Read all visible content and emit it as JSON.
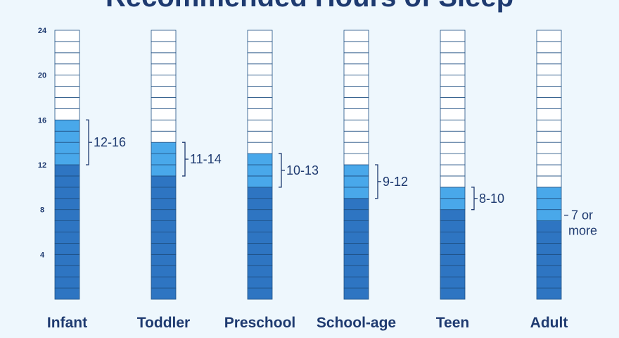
{
  "title": "Recommended Hours of Sleep",
  "colors": {
    "title": "#1e3a70",
    "base": "#2e75c2",
    "range": "#49a8ea",
    "empty": "#ffffff",
    "cell_border": "#1e4f82",
    "bracket": "#1e3a70",
    "background": "#eef7fd"
  },
  "chart_data": {
    "type": "bar",
    "title": "Recommended Hours of Sleep",
    "ylim": [
      0,
      24
    ],
    "yticks": [
      4,
      8,
      12,
      16,
      20,
      24
    ],
    "categories": [
      "Infant",
      "Toddler",
      "Preschool",
      "School-age",
      "Teen",
      "Adult"
    ],
    "series": [
      {
        "values": [
          [
            12,
            16
          ],
          [
            11,
            14
          ],
          [
            10,
            13
          ],
          [
            9,
            12
          ],
          [
            8,
            10
          ],
          [
            7,
            10
          ]
        ]
      }
    ],
    "range_labels": [
      "12-16",
      "11-14",
      "10-13",
      "9-12",
      "8-10",
      "7 or more"
    ],
    "grid": false,
    "legend": "none"
  }
}
